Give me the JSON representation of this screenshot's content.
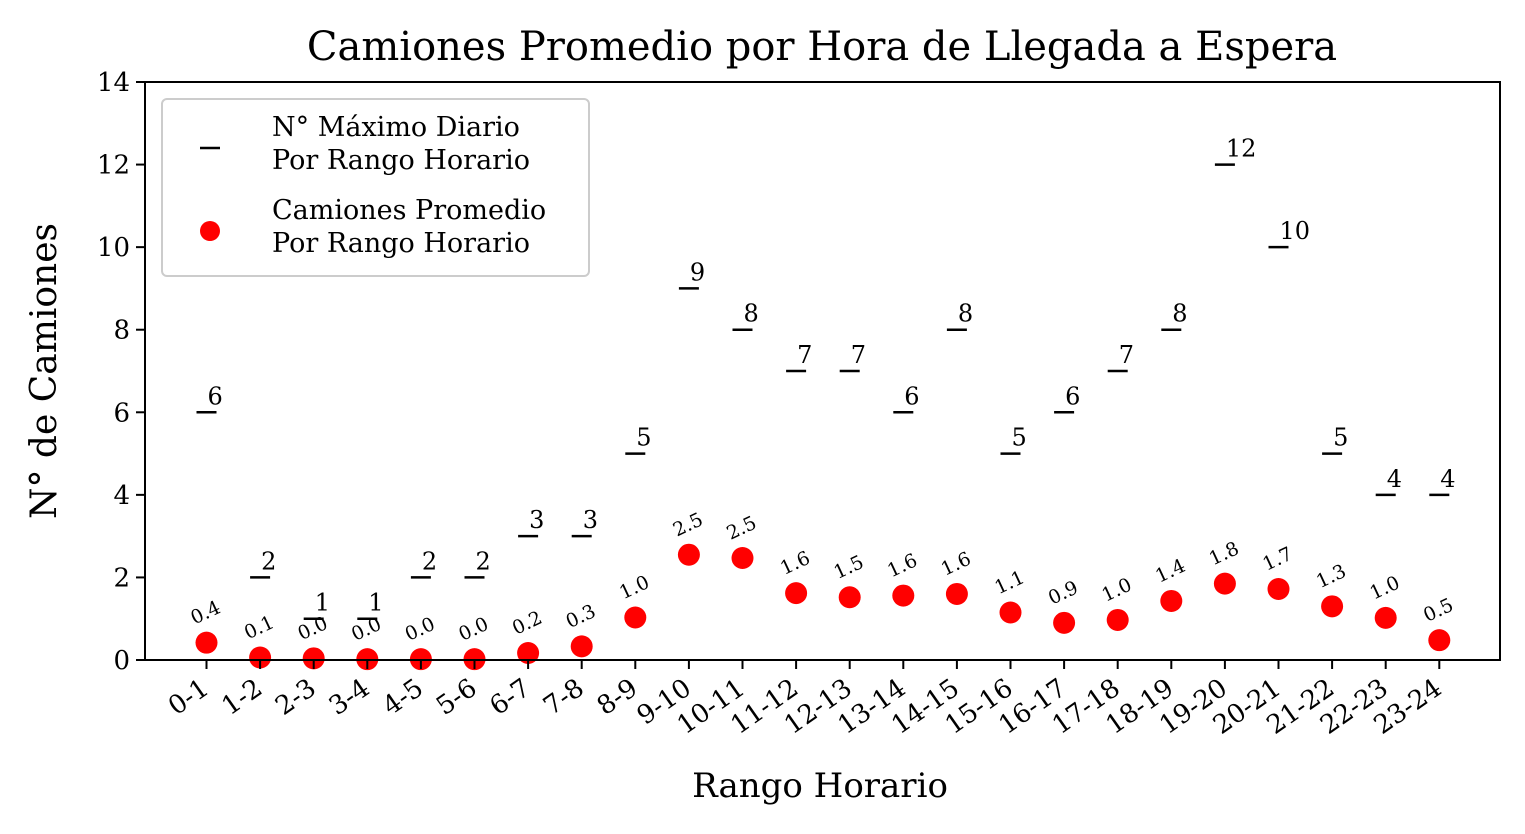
{
  "chart_data": {
    "type": "scatter",
    "title": "Camiones Promedio por Hora de Llegada a Espera",
    "xlabel": "Rango Horario",
    "ylabel": "N° de Camiones",
    "ylim": [
      0,
      14
    ],
    "yticks": [
      "0",
      "2",
      "4",
      "6",
      "8",
      "10",
      "12",
      "14"
    ],
    "grid": false,
    "legend_position": "top-left",
    "categories": [
      "0-1",
      "1-2",
      "2-3",
      "3-4",
      "4-5",
      "5-6",
      "6-7",
      "7-8",
      "8-9",
      "9-10",
      "10-11",
      "11-12",
      "12-13",
      "13-14",
      "14-15",
      "15-16",
      "16-17",
      "17-18",
      "18-19",
      "19-20",
      "20-21",
      "21-22",
      "22-23",
      "23-24"
    ],
    "series": [
      {
        "name_line1": "N° Máximo Diario",
        "name_line2": "Por Rango Horario",
        "marker": "hline",
        "color": "#000000",
        "values": [
          6,
          2,
          1,
          1,
          2,
          2,
          3,
          3,
          5,
          9,
          8,
          7,
          7,
          6,
          8,
          5,
          6,
          7,
          8,
          12,
          10,
          5,
          4,
          4
        ],
        "labels": [
          "6",
          "2",
          "1",
          "1",
          "2",
          "2",
          "3",
          "3",
          "5",
          "9",
          "8",
          "7",
          "7",
          "6",
          "8",
          "5",
          "6",
          "7",
          "8",
          "12",
          "10",
          "5",
          "4",
          "4"
        ]
      },
      {
        "name_line1": "Camiones Promedio",
        "name_line2": "Por Rango Horario",
        "marker": "circle",
        "color": "#ff0000",
        "values": [
          0.42,
          0.06,
          0.04,
          0.02,
          0.02,
          0.02,
          0.17,
          0.33,
          1.03,
          2.55,
          2.47,
          1.62,
          1.52,
          1.56,
          1.6,
          1.15,
          0.9,
          0.97,
          1.43,
          1.85,
          1.72,
          1.3,
          1.02,
          0.48
        ],
        "labels": [
          "0.4",
          "0.1",
          "0.0",
          "0.0",
          "0.0",
          "0.0",
          "0.2",
          "0.3",
          "1.0",
          "2.5",
          "2.5",
          "1.6",
          "1.5",
          "1.6",
          "1.6",
          "1.1",
          "0.9",
          "1.0",
          "1.4",
          "1.8",
          "1.7",
          "1.3",
          "1.0",
          "0.5"
        ]
      }
    ]
  }
}
